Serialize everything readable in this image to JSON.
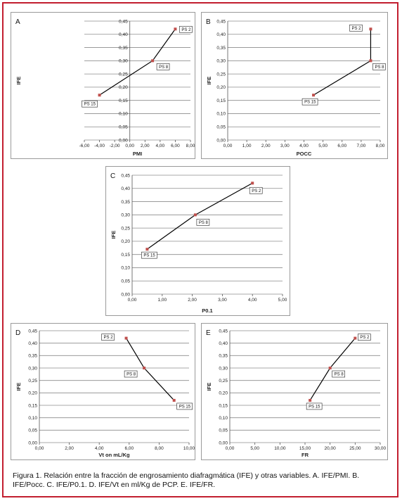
{
  "caption": "Figura 1. Relación entre la fracción de engrosamiento diafragmática (IFE) y otras variables. A. IFE/PMI. B. IFE/Pocc. C. IFE/P0.1. D. IFE/Vt en ml/Kg de PCP. E. IFE/FR.",
  "colors": {
    "border": "#c21e2f",
    "marker": "#c0504d",
    "line": "#000000",
    "grid": "#8c8c8c"
  },
  "chart_data": [
    {
      "panel": "A",
      "type": "line",
      "xlabel": "PMI",
      "ylabel": "IFE",
      "xlim": [
        -6,
        8
      ],
      "xstep": 2,
      "ylim": [
        0,
        0.45
      ],
      "ystep": 0.05,
      "x_ticks": [
        "-6,00",
        "-4,00",
        "-2,00",
        "0,00",
        "2,00",
        "4,00",
        "6,00",
        "8,00"
      ],
      "y_ticks": [
        "0,00",
        "0,05",
        "0,10",
        "0,15",
        "0,20",
        "0,25",
        "0,30",
        "0,35",
        "0,40",
        "0,45"
      ],
      "grid": true,
      "points": [
        {
          "label": "PS 15",
          "x": -4,
          "y": 0.17
        },
        {
          "label": "PS 8",
          "x": 3,
          "y": 0.3
        },
        {
          "label": "PS 2",
          "x": 6,
          "y": 0.42
        }
      ]
    },
    {
      "panel": "B",
      "type": "line",
      "xlabel": "POCC",
      "ylabel": "IFE",
      "xlim": [
        0,
        8
      ],
      "xstep": 1,
      "ylim": [
        0,
        0.45
      ],
      "ystep": 0.05,
      "x_ticks": [
        "0,00",
        "1,00",
        "2,00",
        "3,00",
        "4,00",
        "5,00",
        "6,00",
        "7,00",
        "8,00"
      ],
      "y_ticks": [
        "0,00",
        "0,05",
        "0,10",
        "0,15",
        "0,20",
        "0,25",
        "0,30",
        "0,35",
        "0,40",
        "0,45"
      ],
      "grid": true,
      "points": [
        {
          "label": "PS 15",
          "x": 4.5,
          "y": 0.17
        },
        {
          "label": "PS 8",
          "x": 7.5,
          "y": 0.3
        },
        {
          "label": "PS 2",
          "x": 7.5,
          "y": 0.42
        }
      ]
    },
    {
      "panel": "C",
      "type": "line",
      "xlabel": "P0.1",
      "ylabel": "IFE",
      "xlim": [
        0,
        5
      ],
      "xstep": 1,
      "ylim": [
        0,
        0.45
      ],
      "ystep": 0.05,
      "x_ticks": [
        "0,00",
        "1,00",
        "2,00",
        "3,00",
        "4,00",
        "5,00"
      ],
      "y_ticks": [
        "0,00",
        "0,05",
        "0,10",
        "0,15",
        "0,20",
        "0,25",
        "0,30",
        "0,35",
        "0,40",
        "0,45"
      ],
      "grid": true,
      "points": [
        {
          "label": "PS 15",
          "x": 0.5,
          "y": 0.17
        },
        {
          "label": "PS 8",
          "x": 2.1,
          "y": 0.3
        },
        {
          "label": "PS 2",
          "x": 4.0,
          "y": 0.42
        }
      ]
    },
    {
      "panel": "D",
      "type": "line",
      "xlabel": "Vt on mL/Kg",
      "ylabel": "IFE",
      "xlim": [
        0,
        10
      ],
      "xstep": 2,
      "ylim": [
        0,
        0.45
      ],
      "ystep": 0.05,
      "x_ticks": [
        "0,00",
        "2,00",
        "4,00",
        "6,00",
        "8,00",
        "10,00"
      ],
      "y_ticks": [
        "0,00",
        "0,05",
        "0,10",
        "0,15",
        "0,20",
        "0,25",
        "0,30",
        "0,35",
        "0,40",
        "0,45"
      ],
      "grid": true,
      "points": [
        {
          "label": "PS 2",
          "x": 5.8,
          "y": 0.42
        },
        {
          "label": "PS 8",
          "x": 7.0,
          "y": 0.3
        },
        {
          "label": "PS 15",
          "x": 9.0,
          "y": 0.17
        }
      ]
    },
    {
      "panel": "E",
      "type": "line",
      "xlabel": "FR",
      "ylabel": "IFE",
      "xlim": [
        0,
        30
      ],
      "xstep": 5,
      "ylim": [
        0,
        0.45
      ],
      "ystep": 0.05,
      "x_ticks": [
        "0,00",
        "5,00",
        "10,00",
        "15,00",
        "20,00",
        "25,00",
        "30,00"
      ],
      "y_ticks": [
        "0,00",
        "0,05",
        "0,10",
        "0,15",
        "0,20",
        "0,25",
        "0,30",
        "0,35",
        "0,40",
        "0,45"
      ],
      "grid": true,
      "points": [
        {
          "label": "PS 15",
          "x": 16,
          "y": 0.17
        },
        {
          "label": "PS 8",
          "x": 20,
          "y": 0.3
        },
        {
          "label": "PS 2",
          "x": 25,
          "y": 0.42
        }
      ]
    }
  ]
}
